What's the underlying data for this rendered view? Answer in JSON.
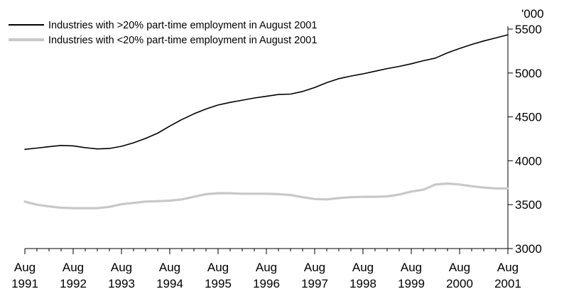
{
  "chart_data": {
    "type": "line",
    "title": "",
    "xlabel": "",
    "ylabel": "'000",
    "ylim": [
      3000,
      5500
    ],
    "yticks": [
      3000,
      3500,
      4000,
      4500,
      5000,
      5500
    ],
    "xlim": [
      1991.583,
      2001.583
    ],
    "xticks": [
      {
        "year": 1991.583,
        "line1": "Aug",
        "line2": "1991"
      },
      {
        "year": 1992.583,
        "line1": "Aug",
        "line2": "1992"
      },
      {
        "year": 1993.583,
        "line1": "Aug",
        "line2": "1993"
      },
      {
        "year": 1994.583,
        "line1": "Aug",
        "line2": "1994"
      },
      {
        "year": 1995.583,
        "line1": "Aug",
        "line2": "1995"
      },
      {
        "year": 1996.583,
        "line1": "Aug",
        "line2": "1996"
      },
      {
        "year": 1997.583,
        "line1": "Aug",
        "line2": "1997"
      },
      {
        "year": 1998.583,
        "line1": "Aug",
        "line2": "1998"
      },
      {
        "year": 1999.583,
        "line1": "Aug",
        "line2": "1999"
      },
      {
        "year": 2000.583,
        "line1": "Aug",
        "line2": "2000"
      },
      {
        "year": 2001.583,
        "line1": "Aug",
        "line2": "2001"
      }
    ],
    "grid": false,
    "legend_position": "top-left",
    "series": [
      {
        "name": "Industries with >20% part-time employment in August 2001",
        "color": "#000000",
        "x": [
          1991.583,
          1991.833,
          1992.083,
          1992.333,
          1992.583,
          1992.833,
          1993.083,
          1993.333,
          1993.583,
          1993.833,
          1994.083,
          1994.333,
          1994.583,
          1994.833,
          1995.083,
          1995.333,
          1995.583,
          1995.833,
          1996.083,
          1996.333,
          1996.583,
          1996.833,
          1997.083,
          1997.333,
          1997.583,
          1997.833,
          1998.083,
          1998.333,
          1998.583,
          1998.833,
          1999.083,
          1999.333,
          1999.583,
          1999.833,
          2000.083,
          2000.333,
          2000.583,
          2000.833,
          2001.083,
          2001.333,
          2001.583
        ],
        "y": [
          4130,
          4145,
          4160,
          4175,
          4170,
          4150,
          4135,
          4140,
          4165,
          4205,
          4255,
          4315,
          4395,
          4470,
          4535,
          4590,
          4635,
          4665,
          4690,
          4715,
          4735,
          4755,
          4760,
          4790,
          4835,
          4890,
          4935,
          4965,
          4990,
          5020,
          5050,
          5075,
          5105,
          5140,
          5170,
          5230,
          5280,
          5325,
          5365,
          5400,
          5435
        ]
      },
      {
        "name": "Industries with <20% part-time employment in August 2001",
        "color": "#c8c8c8",
        "x": [
          1991.583,
          1991.833,
          1992.083,
          1992.333,
          1992.583,
          1992.833,
          1993.083,
          1993.333,
          1993.583,
          1993.833,
          1994.083,
          1994.333,
          1994.583,
          1994.833,
          1995.083,
          1995.333,
          1995.583,
          1995.833,
          1996.083,
          1996.333,
          1996.583,
          1996.833,
          1997.083,
          1997.333,
          1997.583,
          1997.833,
          1998.083,
          1998.333,
          1998.583,
          1998.833,
          1999.083,
          1999.333,
          1999.583,
          1999.833,
          2000.083,
          2000.333,
          2000.583,
          2000.833,
          2001.083,
          2001.333,
          2001.583
        ],
        "y": [
          3535,
          3500,
          3480,
          3465,
          3460,
          3460,
          3460,
          3475,
          3505,
          3520,
          3535,
          3540,
          3545,
          3560,
          3590,
          3620,
          3630,
          3630,
          3625,
          3625,
          3625,
          3620,
          3610,
          3585,
          3565,
          3560,
          3575,
          3585,
          3590,
          3590,
          3595,
          3615,
          3650,
          3670,
          3730,
          3740,
          3730,
          3710,
          3695,
          3685,
          3685
        ]
      }
    ]
  }
}
